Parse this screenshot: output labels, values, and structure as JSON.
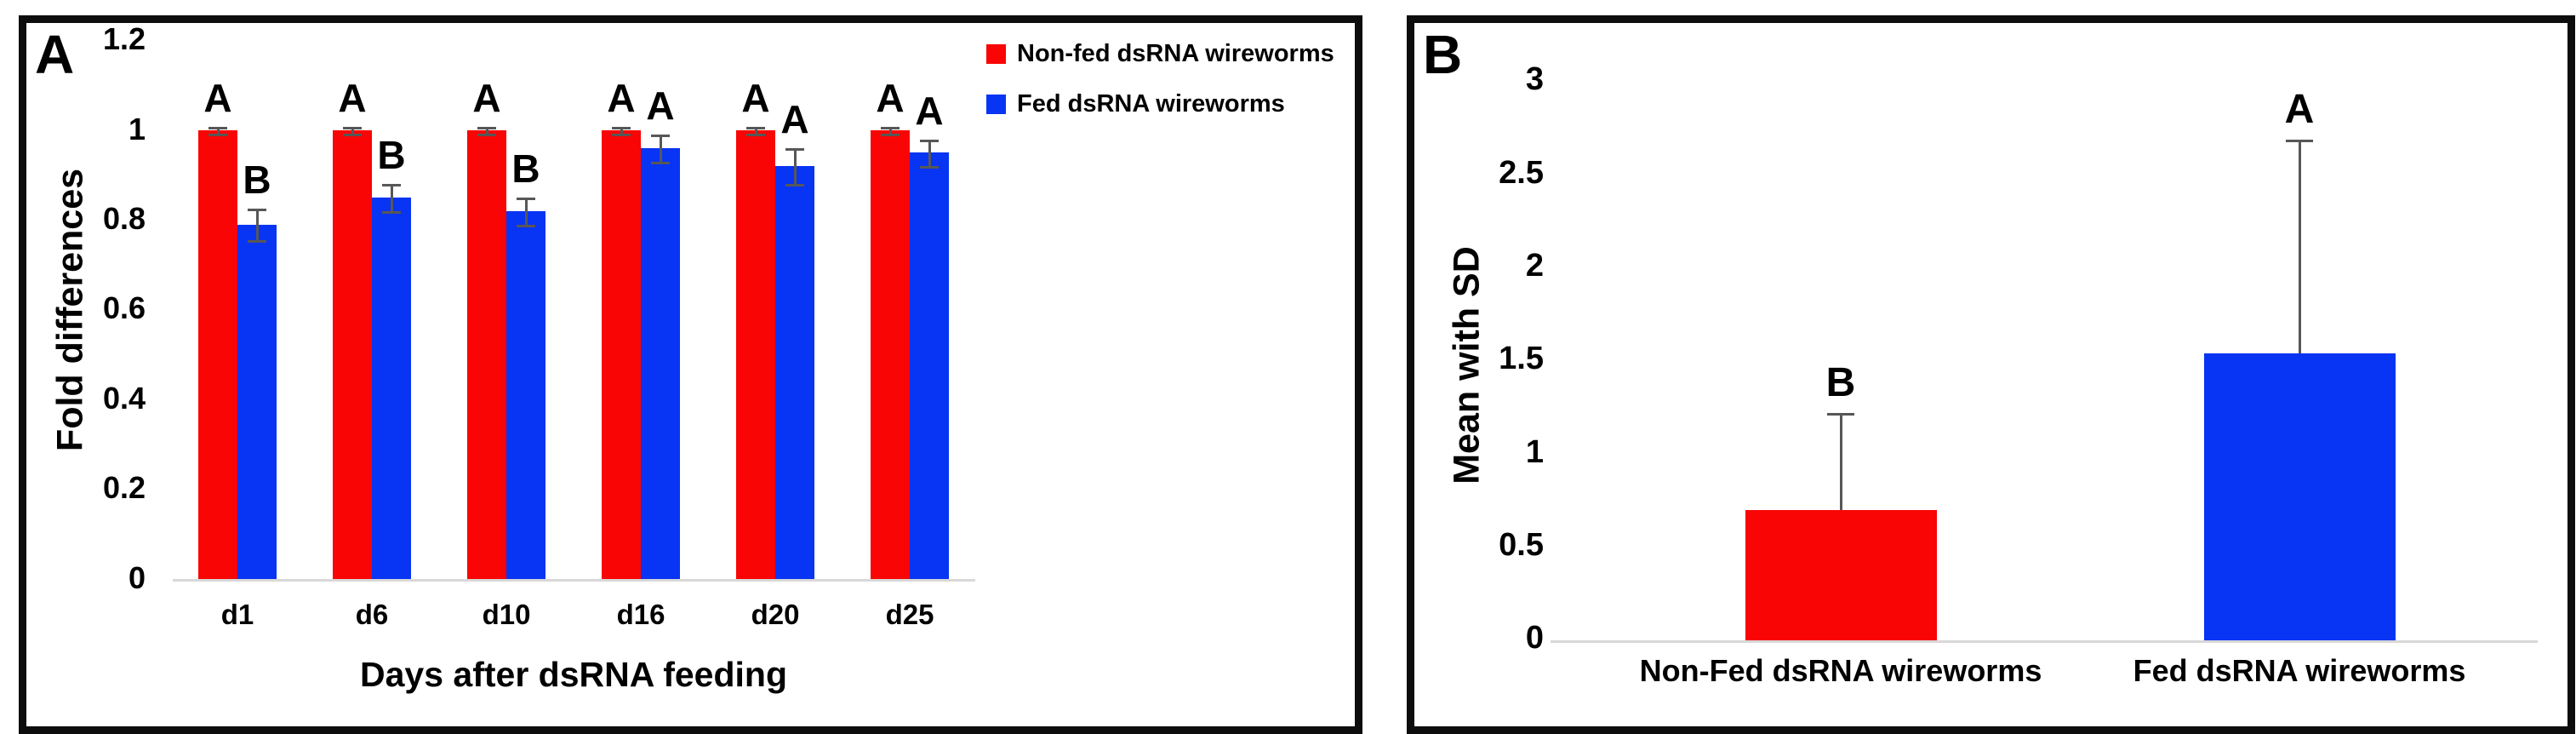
{
  "chart_data": [
    {
      "panel": "A",
      "type": "bar",
      "title": "",
      "xlabel": "Days after dsRNA feeding",
      "ylabel": "Fold differences",
      "categories": [
        "d1",
        "d6",
        "d10",
        "d16",
        "d20",
        "d25"
      ],
      "yticks": [
        0,
        0.2,
        0.4,
        0.6,
        0.8,
        1,
        1.2
      ],
      "ylim": [
        0,
        1.2
      ],
      "grid": false,
      "legend_position": "top-right",
      "series": [
        {
          "name": "Non-fed dsRNA wireworms",
          "color": "#f90505",
          "values": [
            1,
            1,
            1,
            1,
            1,
            1
          ],
          "errors": [
            0.007,
            0.007,
            0.007,
            0.007,
            0.007,
            0.007
          ],
          "letters": [
            "A",
            "A",
            "A",
            "A",
            "A",
            "A"
          ]
        },
        {
          "name": "Fed dsRNA wireworms",
          "color": "#0834f3",
          "values": [
            0.79,
            0.85,
            0.82,
            0.96,
            0.92,
            0.95
          ],
          "errors": [
            0.035,
            0.03,
            0.03,
            0.03,
            0.04,
            0.03
          ],
          "letters": [
            "B",
            "B",
            "B",
            "A",
            "A",
            "A"
          ]
        }
      ]
    },
    {
      "panel": "B",
      "type": "bar",
      "title": "",
      "xlabel": "",
      "ylabel": "Mean with SD",
      "categories": [
        "Non-Fed dsRNA wireworms",
        "Fed dsRNA wireworms"
      ],
      "yticks": [
        0,
        0.5,
        1,
        1.5,
        2,
        2.5,
        3
      ],
      "ylim": [
        0,
        3
      ],
      "grid": false,
      "legend_position": "none",
      "series": [
        {
          "name": "Mean with SD",
          "colors": [
            "#f90505",
            "#0834f3"
          ],
          "values": [
            0.7,
            1.54
          ],
          "errors": [
            0.52,
            1.15
          ],
          "letters": [
            "B",
            "A"
          ]
        }
      ]
    }
  ],
  "style_colors": {
    "non_fed_red": "#f90505",
    "fed_blue": "#0834f3",
    "error_bar": "#575757",
    "axis_line": "#d8d8d8",
    "border": "#0d0d0d"
  }
}
